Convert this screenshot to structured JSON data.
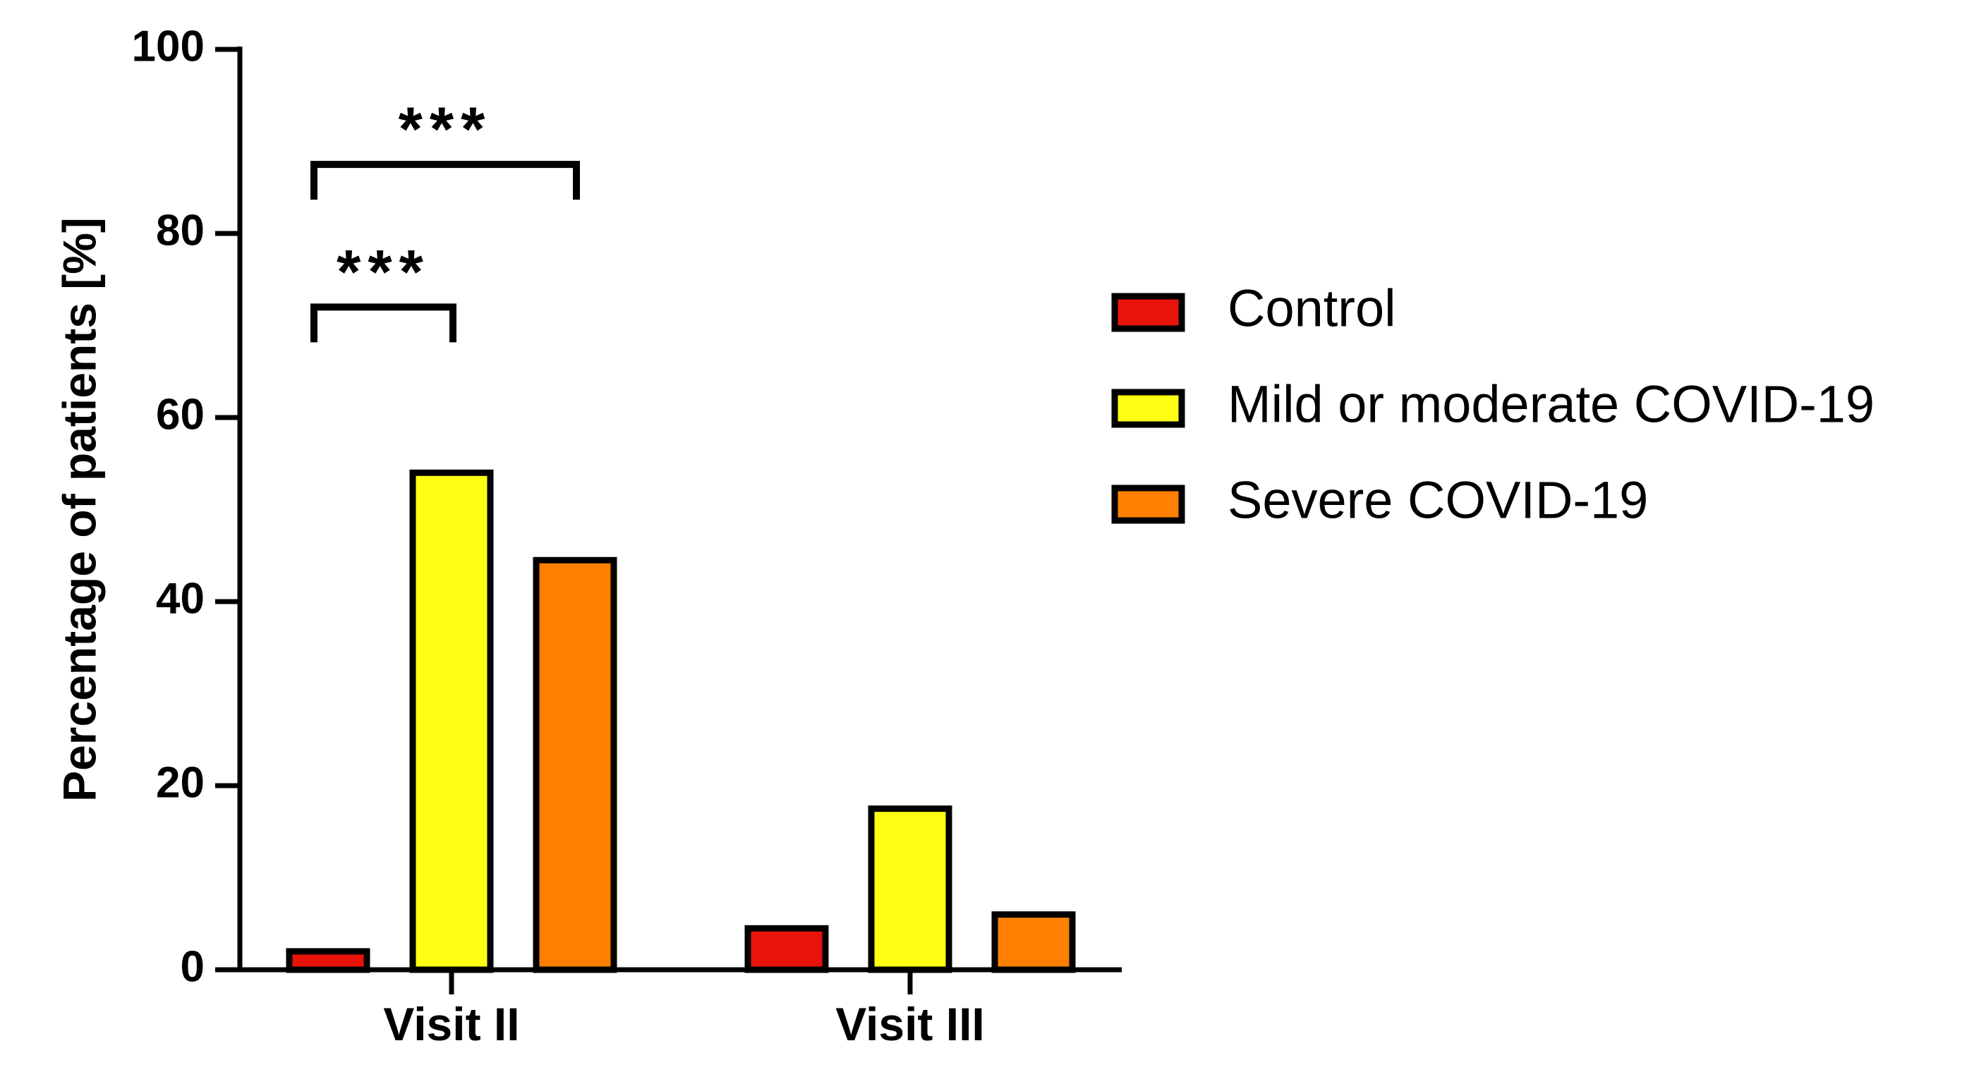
{
  "chart_data": {
    "type": "bar",
    "ylabel": "Percentage of patients [%]",
    "xlabel": "",
    "ylim": [
      0,
      100
    ],
    "yticks": [
      0,
      20,
      40,
      60,
      80,
      100
    ],
    "categories": [
      "Visit II",
      "Visit III"
    ],
    "series": [
      {
        "name": "Control",
        "color": "#e8140c",
        "values": [
          2,
          4.5
        ]
      },
      {
        "name": "Mild or moderate COVID-19",
        "color": "#ffff14",
        "values": [
          54,
          17.5
        ]
      },
      {
        "name": "Severe COVID-19",
        "color": "#ff8000",
        "values": [
          44.5,
          6
        ]
      }
    ],
    "legend_position": "right",
    "grid": false,
    "annotations": [
      {
        "label": "***",
        "category": "Visit II",
        "from_series": 0,
        "to_series": 1,
        "y": 72
      },
      {
        "label": "***",
        "category": "Visit II",
        "from_series": 0,
        "to_series": 2,
        "y": 87.5
      }
    ]
  }
}
